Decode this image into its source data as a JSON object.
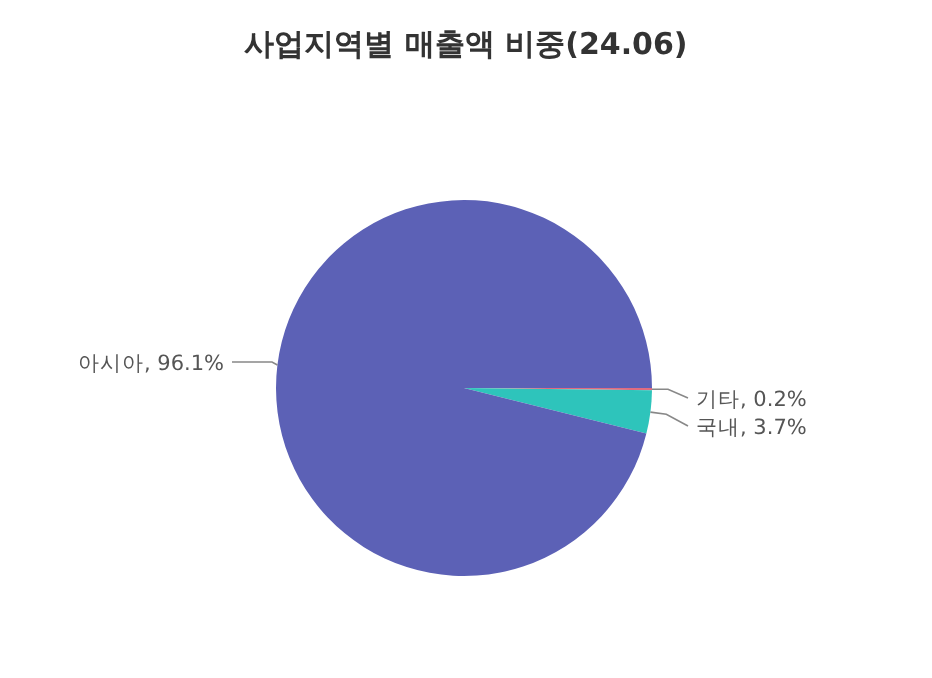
{
  "chart_data": {
    "type": "pie",
    "title": "사업지역별 매출액 비중(24.06)",
    "categories": [
      "기타",
      "국내",
      "아시아"
    ],
    "values": [
      0.2,
      3.7,
      96.1
    ],
    "value_labels": [
      "0.2%",
      "3.7%",
      "96.1%"
    ],
    "colors": [
      "#e06c80",
      "#2ec4bb",
      "#5c61b6"
    ]
  }
}
